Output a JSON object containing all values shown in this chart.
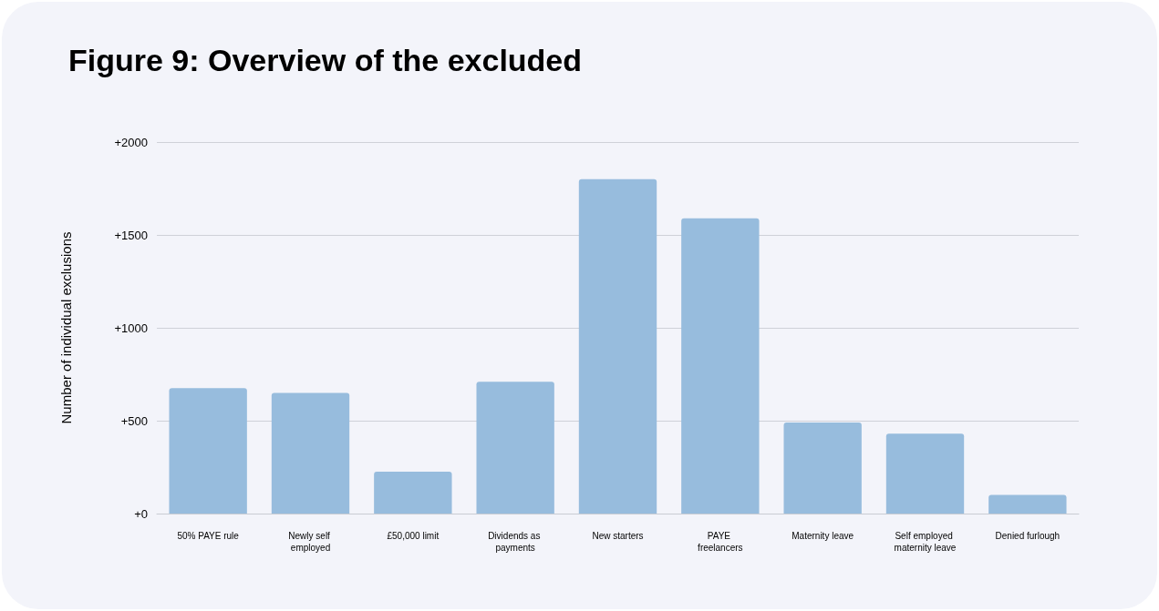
{
  "chart_data": {
    "type": "bar",
    "title": "Figure 9: Overview of the excluded",
    "ylabel": "Number of individual exclusions",
    "categories": [
      "50% PAYE rule",
      "Newly self employed",
      "£50,000 limit",
      "Dividends as payments",
      "New starters",
      "PAYE freelancers",
      "Maternity leave",
      "Self employed maternity leave",
      "Denied furlough"
    ],
    "values": [
      675,
      650,
      225,
      710,
      1800,
      1590,
      490,
      430,
      100
    ],
    "color": "#97bcdd",
    "ylim": [
      0,
      2000
    ],
    "yticks": [
      {
        "value": 0,
        "label": "+0"
      },
      {
        "value": 500,
        "label": "+500"
      },
      {
        "value": 1000,
        "label": "+1000"
      },
      {
        "value": 1500,
        "label": "+1500"
      },
      {
        "value": 2000,
        "label": "+2000"
      }
    ],
    "grid": "y"
  }
}
